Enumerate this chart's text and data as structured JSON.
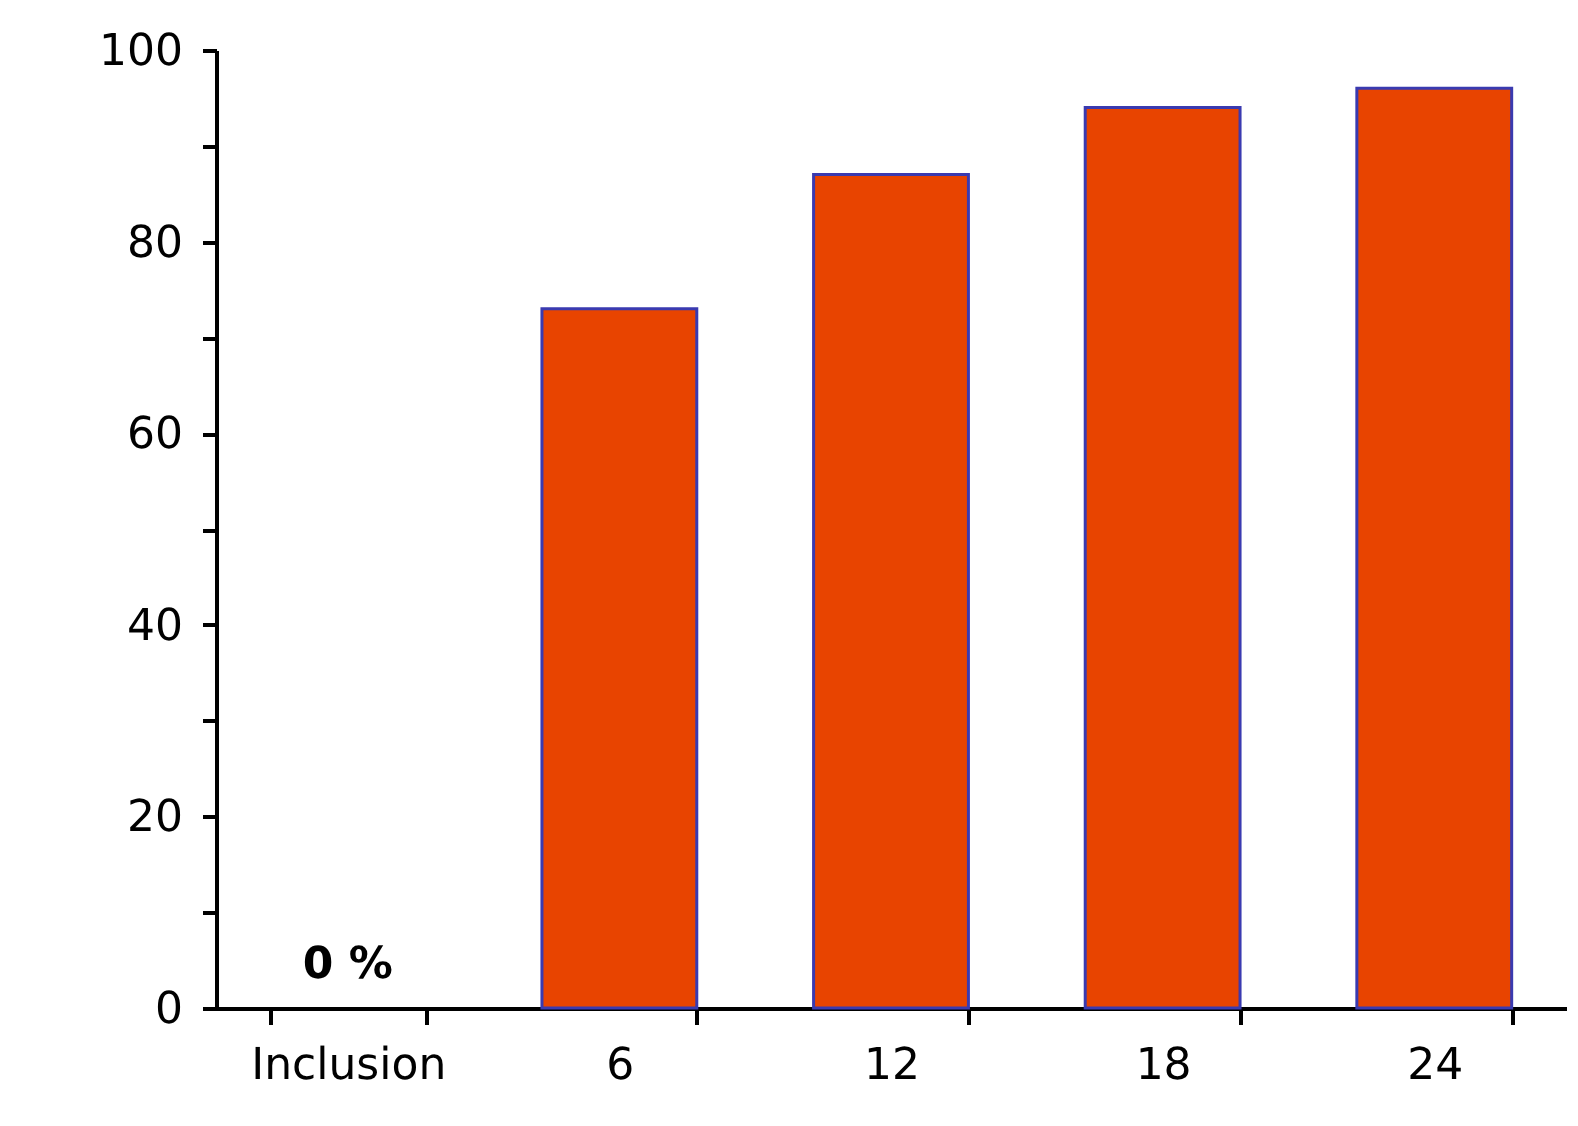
{
  "chart_data": {
    "type": "bar",
    "categories": [
      "Inclusion",
      "6",
      "12",
      "18",
      "24"
    ],
    "values": [
      0,
      73,
      87,
      94,
      96
    ],
    "color": "#e84400",
    "ylim": [
      0,
      100
    ],
    "yticks": [
      0,
      {
        "value": 10,
        "label": null
      },
      20,
      {
        "value": 30,
        "label": null
      },
      40,
      {
        "value": 50,
        "label": null
      },
      60,
      {
        "value": 70,
        "label": null
      },
      80,
      {
        "value": 90,
        "label": null
      },
      100
    ],
    "grid": false,
    "annotations": [
      {
        "text": "0 %",
        "x": "Inclusion",
        "y": 0
      }
    ]
  }
}
